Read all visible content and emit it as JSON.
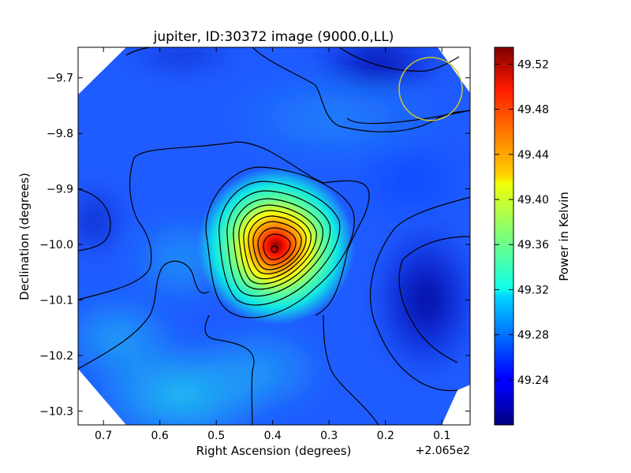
{
  "chart_data": {
    "type": "heatmap",
    "title": "jupiter, ID:30372 image (9000.0,LL)",
    "xlabel": "Right Ascension (degrees)",
    "ylabel": "Declination (degrees)",
    "x_offset_label": "+2.065e2",
    "x_ticks": [
      0.7,
      0.6,
      0.5,
      0.4,
      0.3,
      0.2,
      0.1
    ],
    "x_tick_labels": [
      "0.7",
      "0.6",
      "0.5",
      "0.4",
      "0.3",
      "0.2",
      "0.1"
    ],
    "x_range": [
      0.745,
      0.05
    ],
    "y_ticks": [
      -9.7,
      -9.8,
      -9.9,
      -10.0,
      -10.1,
      -10.2,
      -10.3
    ],
    "y_tick_labels": [
      "−9.7",
      "−9.8",
      "−9.9",
      "−10.0",
      "−10.1",
      "−10.2",
      "−10.3"
    ],
    "y_range": [
      -10.325,
      -9.645
    ],
    "colorbar": {
      "label": "Power in Kelvin",
      "min": 49.2,
      "max": 49.535,
      "ticks": [
        49.24,
        49.28,
        49.32,
        49.36,
        49.4,
        49.44,
        49.48,
        49.52
      ],
      "tick_labels": [
        "49.24",
        "49.28",
        "49.32",
        "49.36",
        "49.40",
        "49.44",
        "49.48",
        "49.52"
      ],
      "colormap": "jet"
    },
    "peak": {
      "ra": 0.39,
      "dec": -10.01,
      "value": 49.52
    },
    "beam_circle": {
      "ra": 0.12,
      "dec": -9.72,
      "color": "#c8c832"
    },
    "colors": {
      "background_field": "#1f5cff",
      "contour": "#000000"
    }
  }
}
